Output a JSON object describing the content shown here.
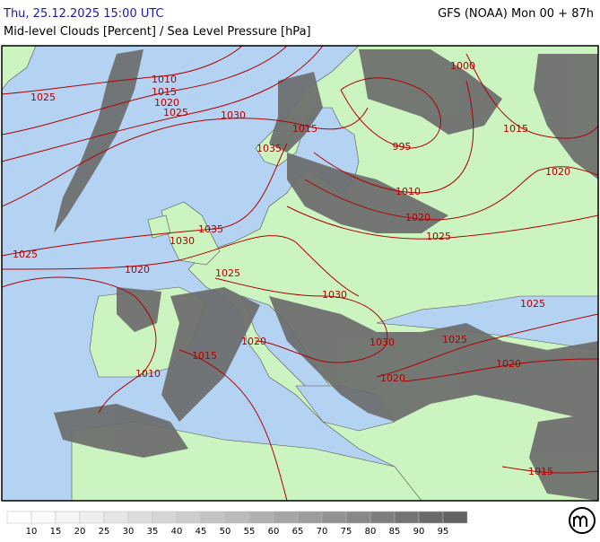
{
  "header": {
    "datetime": "Thu, 25.12.2025 15:00 UTC",
    "model": "GFS (NOAA) Mon 00 + 87h",
    "title": "Mid-level Clouds [Percent] / Sea Level Pressure [hPa]"
  },
  "isobar_labels": [
    "1010",
    "1015",
    "1020",
    "1025",
    "1025",
    "1030",
    "1035",
    "1015",
    "1000",
    "995",
    "1010",
    "1020",
    "1025",
    "1015",
    "1020",
    "1030",
    "1035",
    "1025",
    "1020",
    "1025",
    "1030",
    "1025",
    "1020",
    "1030",
    "1025",
    "1015",
    "1010",
    "1020",
    "1020",
    "1015"
  ],
  "colorbar": {
    "levels": [
      10,
      15,
      20,
      25,
      30,
      35,
      40,
      45,
      50,
      55,
      60,
      65,
      70,
      75,
      80,
      85,
      90,
      95
    ],
    "colors": [
      "#ffffff",
      "#fbfbfb",
      "#f5f5f5",
      "#eeeeee",
      "#e6e6e6",
      "#dedede",
      "#d6d6d6",
      "#cdcdcd",
      "#c4c4c4",
      "#bababa",
      "#b0b0b0",
      "#a6a6a6",
      "#9c9c9c",
      "#929292",
      "#888888",
      "#7e7e7e",
      "#747474",
      "#6a6a6a",
      "#626262"
    ]
  }
}
